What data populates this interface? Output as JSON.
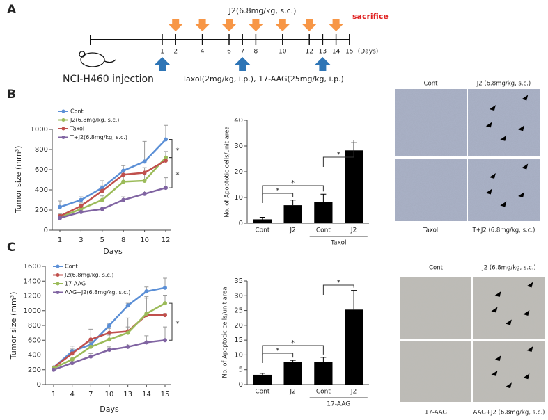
{
  "panel_labels": [
    "A",
    "B",
    "C"
  ],
  "timeline": {
    "j2_label": "J2(6.8mg/kg, s.c.)",
    "end_label": "sacrifice",
    "days": [
      1,
      2,
      4,
      6,
      7,
      8,
      10,
      12,
      13,
      14,
      15
    ],
    "days_unit": "(Days)",
    "j2_days": [
      2,
      4,
      6,
      8,
      10,
      12,
      14
    ],
    "drug_days": [
      1,
      7,
      13
    ],
    "injection_label": "NCI-H460 injection",
    "drug_label": "Taxol(2mg/kg, i.p.), 17-AAG(25mg/kg, i.p.)"
  },
  "chart_data": [
    {
      "type": "line",
      "x_label": "Days",
      "y_label": "Tumor size (mm³)",
      "categories": [
        "1",
        "3",
        "5",
        "8",
        "10",
        "12"
      ],
      "ylim": [
        0,
        1000
      ],
      "yticks": [
        0,
        200,
        400,
        600,
        800,
        1000
      ],
      "series": [
        {
          "name": "Cont",
          "color": "#5b8fd6",
          "values": [
            230,
            300,
            420,
            590,
            680,
            900
          ],
          "errors": [
            60,
            30,
            70,
            50,
            200,
            140
          ]
        },
        {
          "name": "J2(6.8mg/kg, s.c.)",
          "color": "#9bbb59",
          "values": [
            130,
            210,
            300,
            480,
            490,
            720
          ],
          "errors": [
            20,
            20,
            40,
            80,
            60,
            60
          ]
        },
        {
          "name": "Taxol",
          "color": "#c0504d",
          "values": [
            140,
            240,
            390,
            550,
            570,
            690
          ],
          "errors": [
            20,
            30,
            50,
            40,
            50,
            40
          ]
        },
        {
          "name": "T+J2(6.8mg/kg, s.c.)",
          "color": "#8064a2",
          "values": [
            120,
            180,
            210,
            300,
            360,
            420
          ],
          "errors": [
            10,
            20,
            20,
            30,
            30,
            100
          ]
        }
      ],
      "annotations": [
        "*",
        "*"
      ]
    },
    {
      "type": "bar",
      "y_label": "No. of Apoptotic cells/unit area",
      "color": "#000000",
      "categories": [
        "Cont",
        "J2",
        "Cont",
        "J2"
      ],
      "group_label": "Taxol",
      "values": [
        1.5,
        7,
        8.3,
        28.3
      ],
      "errors": [
        0.8,
        2,
        3,
        3
      ],
      "ylim": [
        0,
        40
      ],
      "yticks": [
        0,
        10,
        20,
        30,
        40
      ],
      "annotations": [
        "*",
        "*",
        "*"
      ]
    },
    {
      "type": "line",
      "x_label": "Days",
      "y_label": "Tumor size (mm³)",
      "categories": [
        "1",
        "4",
        "7",
        "10",
        "13",
        "14",
        "15"
      ],
      "ylim": [
        0,
        1600
      ],
      "yticks": [
        0,
        200,
        400,
        600,
        800,
        1000,
        1200,
        1400,
        1600
      ],
      "series": [
        {
          "name": "Cont",
          "color": "#5b8fd6",
          "values": [
            230,
            450,
            540,
            800,
            1070,
            1260,
            1310
          ],
          "errors": [
            20,
            70,
            40,
            20,
            30,
            60,
            130
          ]
        },
        {
          "name": "J2(6.8mg/kg, s.c.)",
          "color": "#c0504d",
          "values": [
            230,
            420,
            610,
            700,
            720,
            940,
            940
          ],
          "errors": [
            20,
            60,
            140,
            60,
            60,
            230,
            20
          ]
        },
        {
          "name": "17-AAG",
          "color": "#9bbb59",
          "values": [
            220,
            340,
            510,
            610,
            700,
            960,
            1100
          ],
          "errors": [
            20,
            30,
            60,
            60,
            200,
            230,
            110
          ]
        },
        {
          "name": "AAG+J2(6.8mg/kg, s.c.)",
          "color": "#8064a2",
          "values": [
            200,
            290,
            380,
            470,
            510,
            570,
            600
          ],
          "errors": [
            20,
            30,
            40,
            40,
            40,
            90,
            180
          ]
        }
      ],
      "annotations": [
        "*"
      ]
    },
    {
      "type": "bar",
      "y_label": "No. of Apoptotic cells/unit area",
      "color": "#000000",
      "categories": [
        "Cont",
        "J2",
        "Cont",
        "J2"
      ],
      "group_label": "17-AAG",
      "values": [
        3.3,
        7.7,
        7.7,
        25.3
      ],
      "errors": [
        0.5,
        0.5,
        1.5,
        6.5
      ],
      "ylim": [
        0,
        35
      ],
      "yticks": [
        0,
        5,
        10,
        15,
        20,
        25,
        30,
        35
      ],
      "annotations": [
        "*",
        "*",
        "*"
      ]
    }
  ],
  "micrographs": [
    {
      "labels": [
        "Cont",
        "J2 (6.8mg/kg, s.c.)",
        "Taxol",
        "T+J2 (6.8mg/kg, s.c.)"
      ]
    },
    {
      "labels": [
        "Cont",
        "J2 (6.8mg/kg, s.c.)",
        "17-AAG",
        "AAG+J2 (6.8mg/kg, s.c.)"
      ]
    }
  ]
}
